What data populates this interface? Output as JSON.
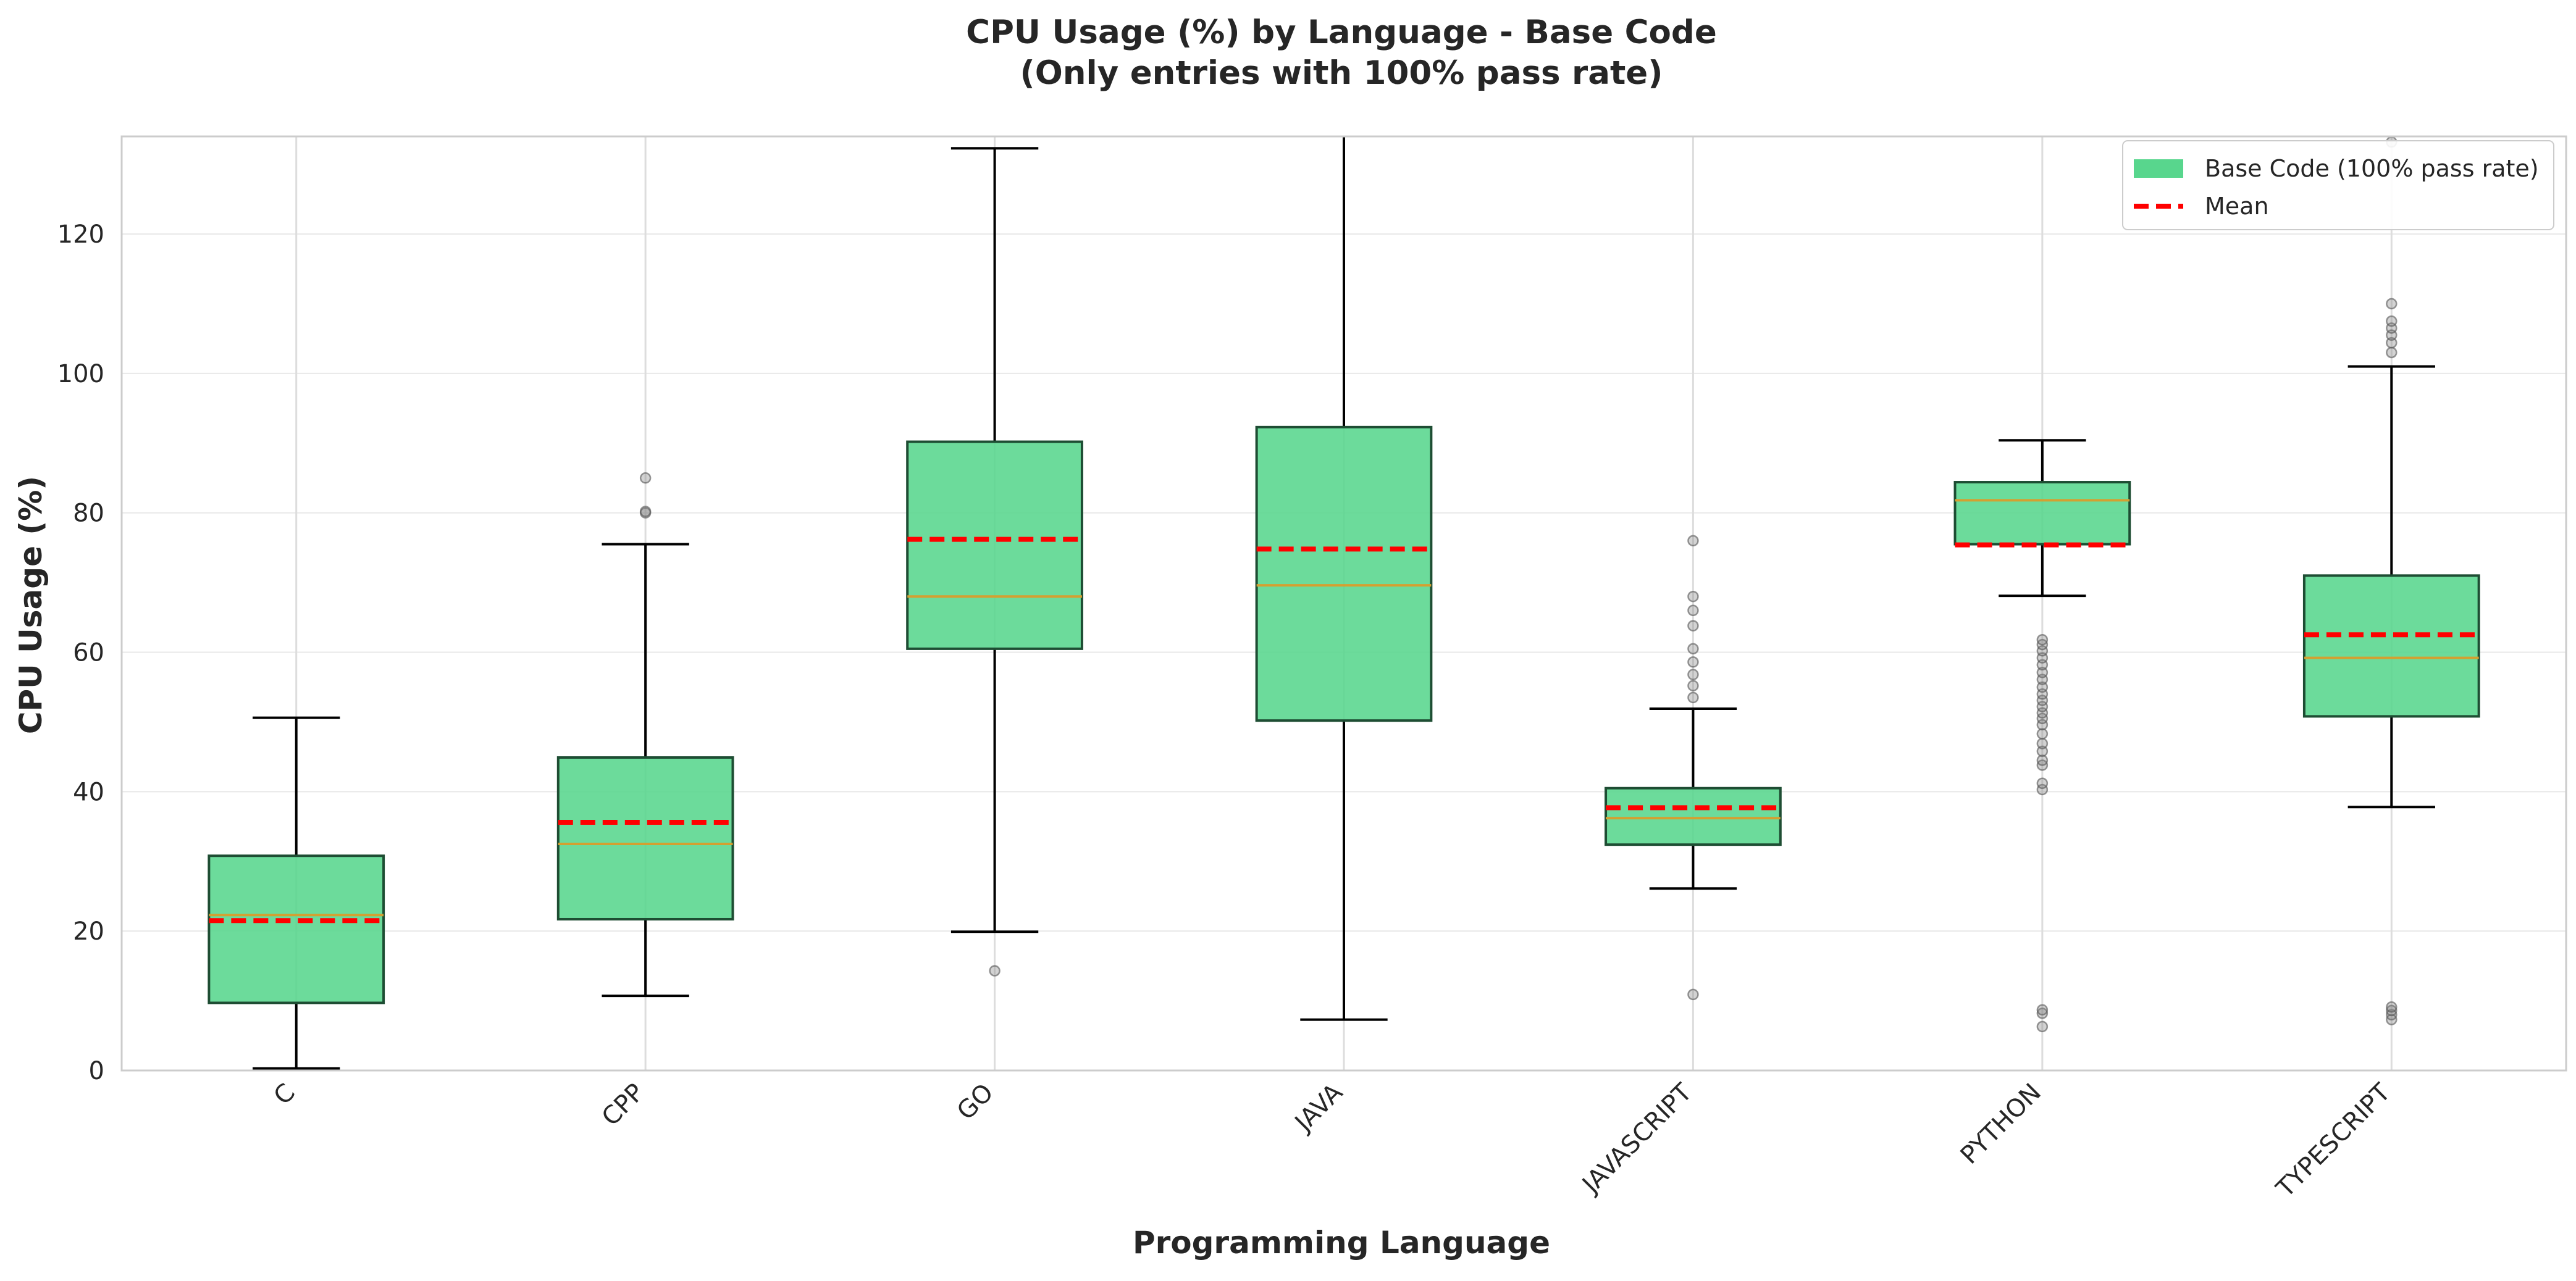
{
  "chart_data": {
    "type": "box",
    "title": "CPU Usage (%) by Language - Base Code",
    "subtitle": "(Only entries with 100% pass rate)",
    "xlabel": "Programming Language",
    "ylabel": "CPU Usage (%)",
    "ylim": [
      0,
      134
    ],
    "yticks": [
      0,
      20,
      40,
      60,
      80,
      100,
      120
    ],
    "grid": true,
    "legend_position": "top-right",
    "legend": [
      {
        "label": "Base Code (100% pass rate)",
        "kind": "box"
      },
      {
        "label": "Mean",
        "kind": "dashed-line"
      }
    ],
    "colors": {
      "box_fill": "#58D68D",
      "box_edge": "#1e4d33",
      "median": "#d4a030",
      "mean": "#ff0000",
      "whisker": "#000000",
      "outlier": "#808080",
      "grid": "#e8e8e8",
      "axes_frame": "#cccccc"
    },
    "categories": [
      "C",
      "CPP",
      "GO",
      "JAVA",
      "JAVASCRIPT",
      "PYTHON",
      "TYPESCRIPT"
    ],
    "series": [
      {
        "category": "C",
        "whisker_low": 0.3,
        "q1": 9.7,
        "median": 22.3,
        "q3": 30.8,
        "whisker_high": 50.6,
        "mean": 21.5,
        "outliers": []
      },
      {
        "category": "CPP",
        "whisker_low": 10.7,
        "q1": 21.7,
        "median": 32.5,
        "q3": 44.9,
        "whisker_high": 75.5,
        "mean": 35.6,
        "outliers": [
          80.0,
          80.2,
          85.0
        ]
      },
      {
        "category": "GO",
        "whisker_low": 19.9,
        "q1": 60.5,
        "median": 68.0,
        "q3": 90.2,
        "whisker_high": 132.3,
        "mean": 76.2,
        "outliers": [
          14.3
        ]
      },
      {
        "category": "JAVA",
        "whisker_low": 7.3,
        "q1": 50.2,
        "median": 69.6,
        "q3": 92.3,
        "whisker_high": 134,
        "mean": 74.8,
        "outliers": []
      },
      {
        "category": "JAVASCRIPT",
        "whisker_low": 26.1,
        "q1": 32.4,
        "median": 36.2,
        "q3": 40.5,
        "whisker_high": 51.9,
        "mean": 37.7,
        "outliers": [
          10.9,
          53.5,
          55.2,
          56.8,
          58.6,
          60.5,
          63.8,
          66.0,
          68.0,
          76.0
        ]
      },
      {
        "category": "PYTHON",
        "whisker_low": 68.1,
        "q1": 75.5,
        "median": 81.8,
        "q3": 84.4,
        "whisker_high": 90.4,
        "mean": 75.4,
        "outliers": [
          6.3,
          8.2,
          8.7,
          40.3,
          41.2,
          43.8,
          44.5,
          45.8,
          46.9,
          48.3,
          49.6,
          50.5,
          51.3,
          52.2,
          53.1,
          54.0,
          55.0,
          56.1,
          57.1,
          58.2,
          59.2,
          60.2,
          61.1,
          61.8
        ]
      },
      {
        "category": "TYPESCRIPT",
        "whisker_low": 37.8,
        "q1": 50.8,
        "median": 59.2,
        "q3": 71.0,
        "whisker_high": 101.0,
        "mean": 62.5,
        "outliers": [
          7.3,
          8.0,
          8.6,
          9.1,
          103.0,
          104.4,
          105.5,
          106.5,
          107.5,
          110.0,
          133.2
        ]
      }
    ]
  }
}
